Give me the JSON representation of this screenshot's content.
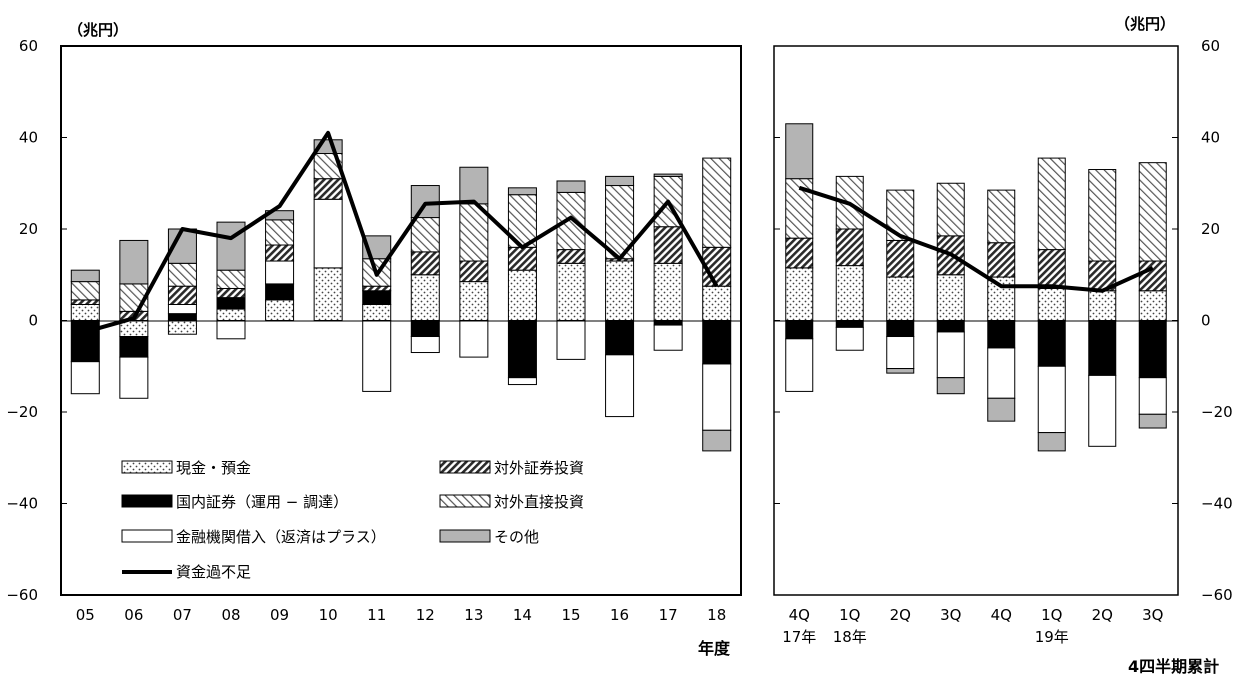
{
  "colors": {
    "cash": "#ffffff",
    "domestic": "#000000",
    "foreign_sec": "#2a2a2a",
    "fdi": "#555555",
    "loans": "#ffffff",
    "other": "#b4b4b4",
    "line": "#000000"
  },
  "chart_data": [
    {
      "type": "bar",
      "stacked": true,
      "unit_label": "（兆円）",
      "xlabel": "年度",
      "ylim": [
        -60,
        60
      ],
      "y_ticks": [
        "60",
        "40",
        "20",
        "0",
        "−20",
        "−40",
        "−60"
      ],
      "categories": [
        "05",
        "06",
        "07",
        "08",
        "09",
        "10",
        "11",
        "12",
        "13",
        "14",
        "15",
        "16",
        "17",
        "18"
      ],
      "series": [
        {
          "name": "現金・預金",
          "key": "cash",
          "values": [
            3.5,
            -3.5,
            -3,
            2.5,
            4.5,
            11.5,
            3.5,
            10,
            8.5,
            11,
            12.5,
            13,
            12.5,
            7.5
          ]
        },
        {
          "name": "国内証券（運用 − 調達）",
          "key": "domestic",
          "values": [
            -9,
            -4.5,
            1.5,
            2.5,
            3.5,
            0,
            3,
            -3.5,
            0,
            -12.5,
            0,
            -7.5,
            -1,
            -9.5
          ]
        },
        {
          "name": "金融機関借入（返済はプラス）",
          "key": "loans",
          "values": [
            -7,
            -9,
            2,
            -4,
            5,
            15,
            -15.5,
            -3.5,
            -8,
            -1.5,
            -8.5,
            -13.5,
            -5.5,
            -14.5
          ]
        },
        {
          "name": "対外証券投資",
          "key": "foreign_sec",
          "values": [
            1,
            2,
            4,
            2,
            3.5,
            4.5,
            1,
            5,
            4.5,
            5,
            3,
            0.5,
            8,
            8.5
          ]
        },
        {
          "name": "対外直接投資",
          "key": "fdi",
          "values": [
            4,
            6,
            5,
            4,
            5.5,
            5.5,
            6,
            7.5,
            12.5,
            11.5,
            12.5,
            16,
            11,
            19.5
          ]
        },
        {
          "name": "その他",
          "key": "other",
          "values": [
            2.5,
            9.5,
            7.5,
            10.5,
            2,
            3,
            5,
            7,
            8,
            1.5,
            2.5,
            2,
            0.5,
            -4.5
          ]
        }
      ],
      "line": {
        "name": "資金過不足",
        "values": [
          -2.5,
          0.5,
          20,
          18,
          25,
          41,
          10,
          25.5,
          26,
          16,
          22.5,
          13.5,
          26,
          7.5
        ]
      }
    },
    {
      "type": "bar",
      "stacked": true,
      "unit_label": "（兆円）",
      "xlabel": "4四半期累計",
      "ylim": [
        -60,
        60
      ],
      "y_ticks": [
        "60",
        "40",
        "20",
        "0",
        "−20",
        "−40",
        "−60"
      ],
      "categories": [
        "4Q",
        "1Q",
        "2Q",
        "3Q",
        "4Q",
        "1Q",
        "2Q",
        "3Q"
      ],
      "year_labels": [
        "17年",
        "18年",
        "",
        "",
        "",
        "19年",
        "",
        ""
      ],
      "series": [
        {
          "name": "現金・預金",
          "key": "cash",
          "values": [
            11.5,
            12,
            9.5,
            10,
            9.5,
            7,
            6.5,
            6.5
          ]
        },
        {
          "name": "国内証券（運用 − 調達）",
          "key": "domestic",
          "values": [
            -4,
            -1.5,
            -3.5,
            -2.5,
            -6,
            -10,
            -12,
            -12.5
          ]
        },
        {
          "name": "金融機関借入（返済はプラス）",
          "key": "loans",
          "values": [
            -11.5,
            -5,
            -7,
            -10,
            -11,
            -14.5,
            -15.5,
            -8
          ]
        },
        {
          "name": "対外証券投資",
          "key": "foreign_sec",
          "values": [
            6.5,
            8,
            8,
            8.5,
            7.5,
            8.5,
            6.5,
            6.5
          ]
        },
        {
          "name": "対外直接投資",
          "key": "fdi",
          "values": [
            13,
            11.5,
            11,
            11.5,
            11.5,
            20,
            20,
            21.5
          ]
        },
        {
          "name": "その他",
          "key": "other",
          "values": [
            12,
            0,
            -1,
            -3.5,
            -5,
            -4,
            0,
            -3
          ]
        }
      ],
      "line": {
        "name": "資金過不足",
        "values": [
          29,
          25.5,
          18.5,
          14.5,
          7.5,
          7.5,
          6.5,
          11.5
        ]
      }
    }
  ]
}
